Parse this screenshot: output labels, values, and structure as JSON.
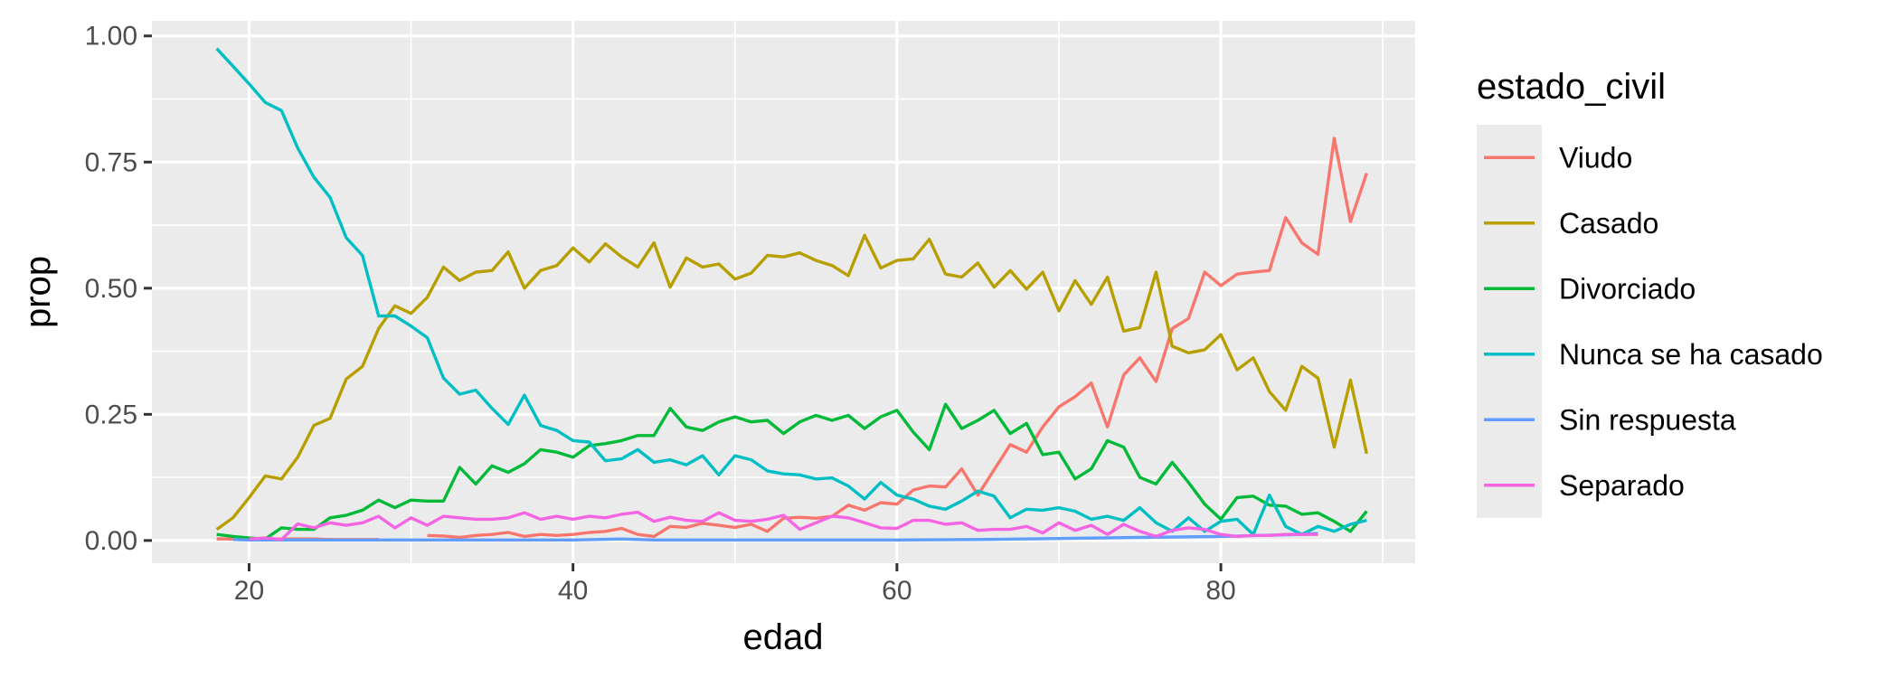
{
  "chart_data": {
    "type": "line",
    "xlabel": "edad",
    "ylabel": "prop",
    "xlim": [
      14,
      92
    ],
    "ylim": [
      -0.045,
      1.03
    ],
    "x_ticks": [
      20,
      40,
      60,
      80
    ],
    "y_ticks": [
      0.0,
      0.25,
      0.5,
      0.75,
      1.0
    ],
    "y_tick_labels": [
      "0.00",
      "0.25",
      "0.50",
      "0.75",
      "1.00"
    ],
    "x_tick_labels": [
      "20",
      "40",
      "60",
      "80"
    ],
    "grid": true,
    "legend": {
      "title": "estado_civil",
      "position": "right"
    },
    "series": [
      {
        "name": "Viudo",
        "color": "#F8766D",
        "x": [
          18,
          19,
          20,
          21,
          22,
          23,
          24,
          25,
          26,
          27,
          28,
          29,
          30,
          31,
          32,
          33,
          34,
          35,
          36,
          37,
          38,
          39,
          40,
          41,
          42,
          43,
          44,
          45,
          46,
          47,
          48,
          49,
          50,
          51,
          52,
          53,
          54,
          55,
          56,
          57,
          58,
          59,
          60,
          61,
          62,
          63,
          64,
          65,
          66,
          67,
          68,
          69,
          70,
          71,
          72,
          73,
          74,
          75,
          76,
          77,
          78,
          79,
          80,
          81,
          82,
          83,
          84,
          85,
          86,
          87,
          88,
          89
        ],
        "values": [
          0.003,
          0.003,
          0.002,
          0.002,
          0.003,
          0.003,
          0.003,
          0.002,
          0.002,
          0.002,
          0.002,
          null,
          null,
          0.01,
          0.009,
          0.006,
          0.01,
          0.012,
          0.016,
          0.008,
          0.012,
          0.01,
          0.012,
          0.016,
          0.018,
          0.024,
          0.012,
          0.008,
          0.028,
          0.026,
          0.034,
          0.03,
          0.026,
          0.032,
          0.018,
          0.044,
          0.046,
          0.044,
          0.048,
          0.07,
          0.06,
          0.075,
          0.072,
          0.1,
          0.108,
          0.106,
          0.142,
          0.09,
          0.14,
          0.19,
          0.175,
          0.225,
          0.265,
          0.285,
          0.312,
          0.225,
          0.328,
          0.362,
          0.315,
          0.42,
          0.44,
          0.532,
          0.505,
          0.528,
          0.532,
          0.535,
          0.64,
          0.59,
          0.567,
          0.797,
          0.632,
          0.728
        ]
      },
      {
        "name": "Casado",
        "color": "#B79F00",
        "x": [
          18,
          19,
          20,
          21,
          22,
          23,
          24,
          25,
          26,
          27,
          28,
          29,
          30,
          31,
          32,
          33,
          34,
          35,
          36,
          37,
          38,
          39,
          40,
          41,
          42,
          43,
          44,
          45,
          46,
          47,
          48,
          49,
          50,
          51,
          52,
          53,
          54,
          55,
          56,
          57,
          58,
          59,
          60,
          61,
          62,
          63,
          64,
          65,
          66,
          67,
          68,
          69,
          70,
          71,
          72,
          73,
          74,
          75,
          76,
          77,
          78,
          79,
          80,
          81,
          82,
          83,
          84,
          85,
          86,
          87,
          88,
          89
        ],
        "values": [
          0.022,
          0.045,
          0.085,
          0.128,
          0.122,
          0.165,
          0.228,
          0.242,
          0.32,
          0.345,
          0.42,
          0.465,
          0.45,
          0.482,
          0.542,
          0.515,
          0.532,
          0.535,
          0.572,
          0.5,
          0.535,
          0.545,
          0.58,
          0.552,
          0.588,
          0.562,
          0.542,
          0.59,
          0.502,
          0.56,
          0.542,
          0.548,
          0.518,
          0.53,
          0.565,
          0.562,
          0.57,
          0.555,
          0.545,
          0.525,
          0.605,
          0.54,
          0.555,
          0.558,
          0.597,
          0.528,
          0.522,
          0.55,
          0.502,
          0.535,
          0.498,
          0.532,
          0.455,
          0.515,
          0.468,
          0.522,
          0.415,
          0.422,
          0.532,
          0.385,
          0.372,
          0.378,
          0.408,
          0.338,
          0.362,
          0.295,
          0.258,
          0.345,
          0.322,
          0.185,
          0.318,
          0.172
        ]
      },
      {
        "name": "Divorciado",
        "color": "#00BA38",
        "x": [
          18,
          19,
          20,
          21,
          22,
          23,
          24,
          25,
          26,
          27,
          28,
          29,
          30,
          31,
          32,
          33,
          34,
          35,
          36,
          37,
          38,
          39,
          40,
          41,
          42,
          43,
          44,
          45,
          46,
          47,
          48,
          49,
          50,
          51,
          52,
          53,
          54,
          55,
          56,
          57,
          58,
          59,
          60,
          61,
          62,
          63,
          64,
          65,
          66,
          67,
          68,
          69,
          70,
          71,
          72,
          73,
          74,
          75,
          76,
          77,
          78,
          79,
          80,
          81,
          82,
          83,
          84,
          85,
          86,
          87,
          88,
          89
        ],
        "values": [
          0.012,
          0.008,
          0.005,
          0.003,
          0.025,
          0.022,
          0.022,
          0.045,
          0.05,
          0.06,
          0.08,
          0.065,
          0.08,
          0.078,
          0.078,
          0.145,
          0.112,
          0.148,
          0.135,
          0.152,
          0.18,
          0.175,
          0.165,
          0.188,
          0.192,
          0.198,
          0.208,
          0.208,
          0.262,
          0.225,
          0.218,
          0.235,
          0.245,
          0.235,
          0.238,
          0.212,
          0.235,
          0.248,
          0.238,
          0.248,
          0.222,
          0.245,
          0.258,
          0.215,
          0.18,
          0.27,
          0.222,
          0.238,
          0.258,
          0.212,
          0.232,
          0.17,
          0.175,
          0.122,
          0.142,
          0.198,
          0.185,
          0.125,
          0.112,
          0.155,
          0.115,
          0.072,
          0.042,
          0.085,
          0.088,
          0.07,
          0.068,
          0.052,
          0.055,
          0.038,
          0.018,
          0.058
        ]
      },
      {
        "name": "Nunca se ha casado",
        "color": "#00BFC4",
        "x": [
          18,
          19,
          20,
          21,
          22,
          23,
          24,
          25,
          26,
          27,
          28,
          29,
          30,
          31,
          32,
          33,
          34,
          35,
          36,
          37,
          38,
          39,
          40,
          41,
          42,
          43,
          44,
          45,
          46,
          47,
          48,
          49,
          50,
          51,
          52,
          53,
          54,
          55,
          56,
          57,
          58,
          59,
          60,
          61,
          62,
          63,
          64,
          65,
          66,
          67,
          68,
          69,
          70,
          71,
          72,
          73,
          74,
          75,
          76,
          77,
          78,
          79,
          80,
          81,
          82,
          83,
          84,
          85,
          86,
          87,
          88,
          89
        ],
        "values": [
          0.975,
          0.94,
          0.905,
          0.868,
          0.852,
          0.778,
          0.72,
          0.68,
          0.6,
          0.565,
          0.445,
          0.445,
          0.425,
          0.402,
          0.322,
          0.29,
          0.298,
          0.262,
          0.23,
          0.288,
          0.228,
          0.218,
          0.198,
          0.195,
          0.158,
          0.162,
          0.18,
          0.155,
          0.16,
          0.15,
          0.168,
          0.13,
          0.168,
          0.16,
          0.138,
          0.132,
          0.13,
          0.122,
          0.124,
          0.108,
          0.082,
          0.115,
          0.09,
          0.082,
          0.068,
          0.062,
          0.078,
          0.098,
          0.088,
          0.045,
          0.062,
          0.06,
          0.065,
          0.058,
          0.042,
          0.048,
          0.04,
          0.065,
          0.035,
          0.018,
          0.045,
          0.018,
          0.038,
          0.042,
          0.012,
          0.09,
          0.028,
          0.012,
          0.028,
          0.018,
          0.032,
          0.04
        ]
      },
      {
        "name": "Sin respuesta",
        "color": "#619CFF",
        "x": [
          19,
          20,
          25,
          30,
          35,
          40,
          43,
          45,
          50,
          55,
          60,
          65,
          70,
          75,
          80,
          85,
          86
        ],
        "values": [
          0.002,
          0.001,
          0.001,
          0.001,
          0.001,
          0.001,
          0.003,
          0.001,
          0.001,
          0.001,
          0.001,
          0.002,
          0.004,
          0.006,
          0.008,
          0.012,
          0.014
        ]
      },
      {
        "name": "Separado",
        "color": "#F564E3",
        "x": [
          20,
          21,
          22,
          23,
          24,
          25,
          26,
          27,
          28,
          29,
          30,
          31,
          32,
          33,
          34,
          35,
          36,
          37,
          38,
          39,
          40,
          41,
          42,
          43,
          44,
          45,
          46,
          47,
          48,
          49,
          50,
          51,
          52,
          53,
          54,
          55,
          56,
          57,
          58,
          59,
          60,
          61,
          62,
          63,
          64,
          65,
          66,
          67,
          68,
          69,
          70,
          71,
          72,
          73,
          74,
          75,
          76,
          77,
          78,
          79,
          80,
          81,
          82,
          83,
          84,
          85,
          86
        ],
        "values": [
          0.003,
          0.005,
          0.002,
          0.033,
          0.025,
          0.035,
          0.03,
          0.035,
          0.048,
          0.025,
          0.045,
          0.03,
          0.048,
          0.045,
          0.042,
          0.042,
          0.045,
          0.055,
          0.042,
          0.048,
          0.042,
          0.048,
          0.045,
          0.052,
          0.056,
          0.038,
          0.046,
          0.04,
          0.038,
          0.055,
          0.04,
          0.038,
          0.042,
          0.05,
          0.022,
          0.035,
          0.048,
          0.045,
          0.035,
          0.025,
          0.024,
          0.04,
          0.04,
          0.032,
          0.035,
          0.02,
          0.022,
          0.022,
          0.028,
          0.015,
          0.035,
          0.02,
          0.03,
          0.012,
          0.032,
          0.018,
          0.008,
          0.02,
          0.025,
          0.022,
          0.012,
          0.008,
          0.01,
          0.01,
          0.012,
          0.012,
          0.012
        ]
      }
    ]
  }
}
